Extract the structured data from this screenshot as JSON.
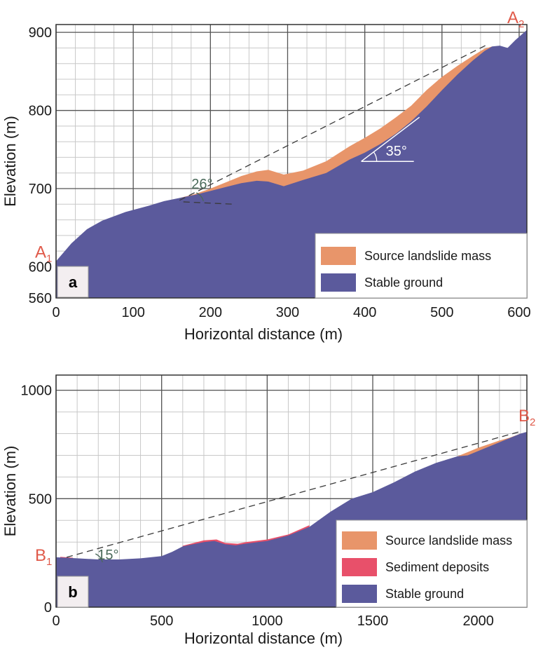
{
  "colors": {
    "stable": "#5b5a9c",
    "source": "#e8956a",
    "sediment": "#e8506a",
    "grid_minor": "#c8c8c8",
    "grid_major": "#555555",
    "endpoint": "#e05a4a",
    "angle_text": "#4a6a5a"
  },
  "chart_data": [
    {
      "type": "area",
      "panel_label": "a",
      "xlabel": "Horizontal distance (m)",
      "ylabel": "Elevation (m)",
      "xlim": [
        0,
        610
      ],
      "ylim": [
        560,
        910
      ],
      "xticks": [
        0,
        100,
        200,
        300,
        400,
        500,
        600
      ],
      "xtick_labels": [
        "0",
        "100",
        "200",
        "300",
        "400",
        "500",
        "600"
      ],
      "yticks": [
        560,
        600,
        700,
        800,
        900
      ],
      "ytick_labels": [
        "560",
        "600",
        "700",
        "800",
        "900"
      ],
      "grid_minor_x": 25,
      "grid_minor_y": 20,
      "grid_major_x": 100,
      "grid_major_y": 100,
      "start_label": {
        "main": "A",
        "sub": "1"
      },
      "end_label": {
        "main": "A",
        "sub": "2"
      },
      "stable_ground": [
        [
          0,
          607
        ],
        [
          20,
          630
        ],
        [
          40,
          648
        ],
        [
          60,
          659
        ],
        [
          90,
          670
        ],
        [
          120,
          678
        ],
        [
          140,
          684
        ],
        [
          160,
          688
        ],
        [
          180,
          692
        ],
        [
          200,
          697
        ],
        [
          220,
          702
        ],
        [
          240,
          707
        ],
        [
          260,
          710
        ],
        [
          275,
          709
        ],
        [
          295,
          703
        ],
        [
          320,
          711
        ],
        [
          350,
          720
        ],
        [
          380,
          737
        ],
        [
          400,
          746
        ],
        [
          420,
          757
        ],
        [
          440,
          770
        ],
        [
          460,
          786
        ],
        [
          480,
          805
        ],
        [
          500,
          826
        ],
        [
          520,
          846
        ],
        [
          540,
          864
        ],
        [
          555,
          876
        ],
        [
          565,
          882
        ],
        [
          575,
          883
        ],
        [
          585,
          880
        ],
        [
          595,
          890
        ],
        [
          610,
          903
        ]
      ],
      "source_top": [
        [
          160,
          688
        ],
        [
          180,
          693
        ],
        [
          200,
          700
        ],
        [
          220,
          708
        ],
        [
          240,
          716
        ],
        [
          260,
          722
        ],
        [
          275,
          724
        ],
        [
          295,
          718
        ],
        [
          320,
          723
        ],
        [
          350,
          735
        ],
        [
          380,
          754
        ],
        [
          400,
          765
        ],
        [
          420,
          777
        ],
        [
          440,
          791
        ],
        [
          460,
          806
        ],
        [
          480,
          826
        ],
        [
          500,
          843
        ],
        [
          520,
          857
        ],
        [
          540,
          870
        ],
        [
          555,
          879
        ],
        [
          565,
          882
        ]
      ],
      "sediment_top": [],
      "dashed_line": [
        [
          160,
          685
        ],
        [
          560,
          885
        ]
      ],
      "short_dashed": [
        [
          165,
          683
        ],
        [
          230,
          680
        ]
      ],
      "angle_arcs": [
        {
          "text": "26°",
          "x": 180,
          "y": 700
        },
        {
          "text": "35°",
          "x": 400,
          "y": 742
        }
      ],
      "legend_entries": [
        {
          "label": "Source landslide mass",
          "color": "source"
        },
        {
          "label": "Stable ground",
          "color": "stable"
        }
      ]
    },
    {
      "type": "area",
      "panel_label": "b",
      "xlabel": "Horizontal distance (m)",
      "ylabel": "Elevation (m)",
      "xlim": [
        0,
        2230
      ],
      "ylim": [
        0,
        1070
      ],
      "xticks": [
        0,
        500,
        1000,
        1500,
        2000
      ],
      "xtick_labels": [
        "0",
        "500",
        "1000",
        "1500",
        "2000"
      ],
      "yticks": [
        0,
        500,
        1000
      ],
      "ytick_labels": [
        "0",
        "500",
        "1000"
      ],
      "grid_minor_x": 100,
      "grid_minor_y": 100,
      "grid_major_x": 500,
      "grid_major_y": 500,
      "start_label": {
        "main": "B",
        "sub": "1"
      },
      "end_label": {
        "main": "B",
        "sub": "2"
      },
      "stable_ground": [
        [
          0,
          230
        ],
        [
          100,
          225
        ],
        [
          200,
          220
        ],
        [
          300,
          220
        ],
        [
          400,
          225
        ],
        [
          500,
          235
        ],
        [
          550,
          255
        ],
        [
          600,
          280
        ],
        [
          700,
          300
        ],
        [
          750,
          305
        ],
        [
          800,
          290
        ],
        [
          850,
          285
        ],
        [
          900,
          293
        ],
        [
          1000,
          305
        ],
        [
          1100,
          330
        ],
        [
          1200,
          370
        ],
        [
          1300,
          440
        ],
        [
          1400,
          500
        ],
        [
          1500,
          530
        ],
        [
          1600,
          575
        ],
        [
          1700,
          625
        ],
        [
          1800,
          665
        ],
        [
          1900,
          695
        ],
        [
          1950,
          700
        ],
        [
          2000,
          720
        ],
        [
          2100,
          760
        ],
        [
          2200,
          800
        ],
        [
          2230,
          808
        ]
      ],
      "source_top": [
        [
          1900,
          695
        ],
        [
          1950,
          715
        ],
        [
          2000,
          735
        ],
        [
          2100,
          768
        ],
        [
          2150,
          782
        ],
        [
          2200,
          800
        ]
      ],
      "sediment_top": [
        [
          20,
          232
        ],
        [
          80,
          228
        ],
        [
          600,
          283
        ],
        [
          700,
          308
        ],
        [
          760,
          312
        ],
        [
          800,
          296
        ],
        [
          860,
          292
        ],
        [
          900,
          300
        ],
        [
          1000,
          312
        ],
        [
          1100,
          335
        ],
        [
          1200,
          378
        ]
      ],
      "dashed_line": [
        [
          50,
          230
        ],
        [
          2200,
          810
        ]
      ],
      "short_dashed": [],
      "angle_arcs": [
        {
          "text": "15°",
          "x": 180,
          "y": 265
        }
      ],
      "legend_entries": [
        {
          "label": "Source landslide mass",
          "color": "source"
        },
        {
          "label": "Sediment deposits",
          "color": "sediment"
        },
        {
          "label": "Stable ground",
          "color": "stable"
        }
      ]
    }
  ]
}
